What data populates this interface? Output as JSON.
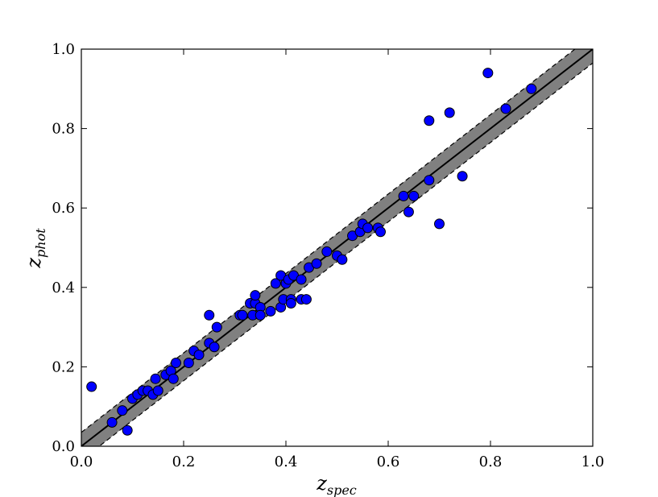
{
  "chart_data": {
    "type": "scatter",
    "xlabel": {
      "base": "z",
      "sub": "spec"
    },
    "ylabel": {
      "base": "z",
      "sub": "phot"
    },
    "xlim": [
      0.0,
      1.0
    ],
    "ylim": [
      0.0,
      1.0
    ],
    "x_ticks": [
      "0.0",
      "0.2",
      "0.4",
      "0.6",
      "0.8",
      "1.0"
    ],
    "y_ticks": [
      "0.0",
      "0.2",
      "0.4",
      "0.6",
      "0.8",
      "1.0"
    ],
    "x_tick_values": [
      0.0,
      0.2,
      0.4,
      0.6,
      0.8,
      1.0
    ],
    "y_tick_values": [
      0.0,
      0.2,
      0.4,
      0.6,
      0.8,
      1.0
    ],
    "grid": false,
    "band_halfwidth": 0.035,
    "colors": {
      "points": "#0000ff",
      "band": "#808080",
      "line": "#000000"
    },
    "series": [
      {
        "x": [
          0.02,
          0.06,
          0.08,
          0.09,
          0.1,
          0.11,
          0.12,
          0.13,
          0.14,
          0.145,
          0.15,
          0.165,
          0.175,
          0.18,
          0.185,
          0.21,
          0.22,
          0.23,
          0.25,
          0.25,
          0.26,
          0.265,
          0.31,
          0.315,
          0.33,
          0.335,
          0.34,
          0.34,
          0.35,
          0.35,
          0.37,
          0.38,
          0.39,
          0.39,
          0.395,
          0.4,
          0.405,
          0.41,
          0.41,
          0.415,
          0.43,
          0.43,
          0.44,
          0.445,
          0.46,
          0.48,
          0.5,
          0.51,
          0.53,
          0.545,
          0.55,
          0.56,
          0.58,
          0.585,
          0.63,
          0.64,
          0.65,
          0.68,
          0.68,
          0.7,
          0.72,
          0.745,
          0.795,
          0.83,
          0.88
        ],
        "y": [
          0.15,
          0.06,
          0.09,
          0.04,
          0.12,
          0.13,
          0.14,
          0.14,
          0.13,
          0.17,
          0.14,
          0.18,
          0.19,
          0.17,
          0.21,
          0.21,
          0.24,
          0.23,
          0.33,
          0.26,
          0.25,
          0.3,
          0.33,
          0.33,
          0.36,
          0.33,
          0.36,
          0.38,
          0.35,
          0.33,
          0.34,
          0.41,
          0.43,
          0.35,
          0.37,
          0.41,
          0.42,
          0.37,
          0.36,
          0.43,
          0.42,
          0.37,
          0.37,
          0.45,
          0.46,
          0.49,
          0.48,
          0.47,
          0.53,
          0.54,
          0.56,
          0.55,
          0.55,
          0.54,
          0.63,
          0.59,
          0.63,
          0.82,
          0.67,
          0.56,
          0.84,
          0.68,
          0.94,
          0.85,
          0.9
        ]
      }
    ]
  }
}
